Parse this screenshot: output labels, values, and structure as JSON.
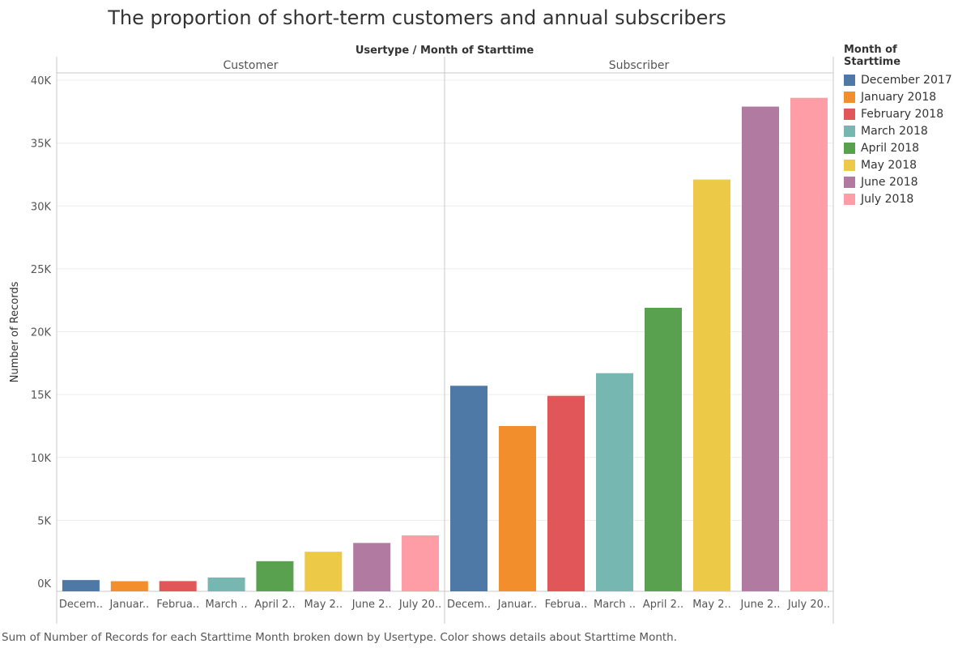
{
  "title": "The proportion of short-term customers and annual subscribers",
  "caption": "Sum of Number of Records for each Starttime Month broken down by Usertype.  Color shows details about Starttime Month.",
  "legend": {
    "title": "Month of Starttime",
    "items": [
      {
        "label": "December 2017",
        "color": "#4e79a7"
      },
      {
        "label": "January 2018",
        "color": "#f28e2b"
      },
      {
        "label": "February 2018",
        "color": "#e15759"
      },
      {
        "label": "March 2018",
        "color": "#76b7b2"
      },
      {
        "label": "April 2018",
        "color": "#59a14f"
      },
      {
        "label": "May 2018",
        "color": "#edc948"
      },
      {
        "label": "June 2018",
        "color": "#b07aa1"
      },
      {
        "label": "July 2018",
        "color": "#ff9da7"
      }
    ]
  },
  "chart_data": {
    "type": "bar",
    "header": "Usertype  /  Month of Starttime",
    "ylabel": "Number of Records",
    "ylim": [
      0,
      40500
    ],
    "yticks": [
      {
        "value": 0,
        "label": "0K"
      },
      {
        "value": 5000,
        "label": "5K"
      },
      {
        "value": 10000,
        "label": "10K"
      },
      {
        "value": 15000,
        "label": "15K"
      },
      {
        "value": 20000,
        "label": "20K"
      },
      {
        "value": 25000,
        "label": "25K"
      },
      {
        "value": 30000,
        "label": "30K"
      },
      {
        "value": 35000,
        "label": "35K"
      },
      {
        "value": 40000,
        "label": "40K"
      }
    ],
    "panels": [
      {
        "name": "Customer",
        "categories": [
          "Decem..",
          "Januar..",
          "Februa..",
          "March ..",
          "April 2..",
          "May 2..",
          "June 2..",
          "July 20.."
        ],
        "values": [
          250,
          160,
          170,
          450,
          1750,
          2500,
          3200,
          3800
        ]
      },
      {
        "name": "Subscriber",
        "categories": [
          "Decem..",
          "Januar..",
          "Februa..",
          "March ..",
          "April 2..",
          "May 2..",
          "June 2..",
          "July 20.."
        ],
        "values": [
          15700,
          12500,
          14900,
          16700,
          21900,
          32100,
          37900,
          38600
        ]
      }
    ],
    "grid": true,
    "legend_position": "right"
  }
}
